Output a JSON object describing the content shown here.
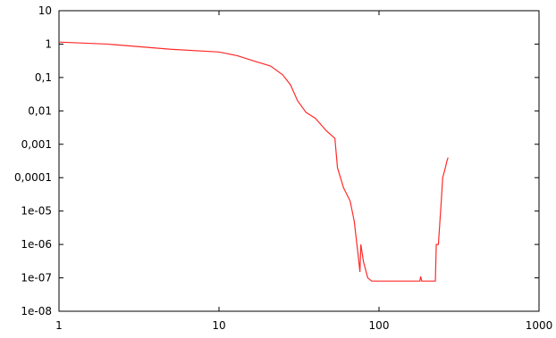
{
  "chart_data": {
    "type": "line",
    "xscale": "log",
    "yscale": "log",
    "color": "#ff2a2a",
    "x": [
      1,
      2,
      5,
      10,
      13,
      17,
      21,
      25,
      28,
      31,
      35,
      40,
      47,
      53,
      55,
      60,
      66,
      70,
      74,
      76,
      77,
      80,
      85,
      90,
      180,
      182,
      185,
      225,
      228,
      235,
      245,
      250,
      260,
      265,
      270
    ],
    "values": [
      1.15,
      1.0,
      0.7,
      0.58,
      0.45,
      0.3,
      0.22,
      0.12,
      0.06,
      0.02,
      0.009,
      0.006,
      0.0025,
      0.0015,
      0.0002,
      5e-05,
      2e-05,
      5e-06,
      5e-07,
      1.5e-07,
      1e-06,
      3e-07,
      1e-07,
      8e-08,
      8e-08,
      1.1e-07,
      8e-08,
      8e-08,
      1e-06,
      1e-06,
      2e-05,
      0.0001,
      0.0002,
      0.0003,
      0.0004
    ],
    "xlim": [
      1,
      1000
    ],
    "xticks": [
      1,
      10,
      100,
      1000
    ],
    "ylim": [
      1e-08,
      10
    ],
    "yticks": [
      10,
      1,
      {
        "value": 0.1,
        "label": "0,1"
      },
      {
        "value": 0.01,
        "label": "0,01"
      },
      {
        "value": 0.001,
        "label": "0,001"
      },
      {
        "value": 0.0001,
        "label": "0,0001"
      },
      {
        "value": 1e-05,
        "label": "1e-05"
      },
      {
        "value": 1e-06,
        "label": "1e-06"
      },
      {
        "value": 1e-07,
        "label": "1e-07"
      },
      {
        "value": 1e-08,
        "label": "1e-08"
      }
    ]
  }
}
